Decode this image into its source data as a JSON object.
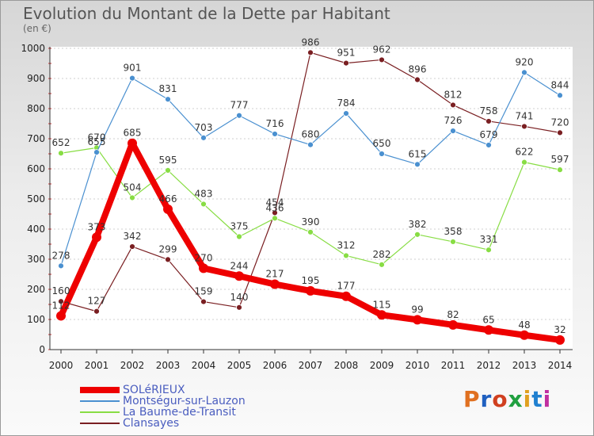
{
  "title": "Evolution du Montant de la Dette par Habitant",
  "unit_label": "(en €)",
  "logo_text": "Proxiti",
  "colors": {
    "solerieux": "#ee0000",
    "montsegur": "#4a90d0",
    "baume": "#88dd44",
    "clansayes": "#7a1f22",
    "logo": [
      "#e07020",
      "#2060c0",
      "#d04020",
      "#20a040",
      "#e0a020",
      "#2080d0",
      "#c030a0"
    ]
  },
  "chart_data": {
    "type": "line",
    "title": "Evolution du Montant de la Dette par Habitant",
    "ylabel": "(en €)",
    "xlabel": "",
    "x": [
      "2000",
      "2001",
      "2002",
      "2003",
      "2004",
      "2005",
      "2006",
      "2007",
      "2008",
      "2009",
      "2010",
      "2011",
      "2012",
      "2013",
      "2014"
    ],
    "ylim": [
      0,
      1000
    ],
    "yticks": [
      0,
      100,
      200,
      300,
      400,
      500,
      600,
      700,
      800,
      900,
      1000
    ],
    "legend_position": "bottom-left",
    "series": [
      {
        "name": "SOLéRIEUX",
        "key": "solerieux",
        "values": [
          112,
          373,
          685,
          466,
          270,
          244,
          217,
          195,
          177,
          115,
          99,
          82,
          65,
          48,
          32
        ],
        "labels": [
          "112",
          "373",
          "685",
          "466",
          "270",
          "244",
          "217",
          "195",
          "177",
          "115",
          "99",
          "82",
          "65",
          "48",
          "32"
        ]
      },
      {
        "name": "Montségur-sur-Lauzon",
        "key": "montsegur",
        "values": [
          278,
          655,
          901,
          831,
          703,
          777,
          716,
          680,
          784,
          650,
          615,
          726,
          679,
          920,
          844
        ],
        "labels": [
          "278",
          "655",
          "901",
          "831",
          "703",
          "777",
          "716",
          "680",
          "784",
          "650",
          "615",
          "726",
          "679",
          "920",
          "844"
        ]
      },
      {
        "name": "La Baume-de-Transit",
        "key": "baume",
        "values": [
          652,
          670,
          504,
          595,
          483,
          375,
          436,
          390,
          312,
          282,
          382,
          358,
          331,
          622,
          597
        ],
        "labels": [
          "652",
          "670",
          "504",
          "595",
          "483",
          "375",
          "436",
          "390",
          "312",
          "282",
          "382",
          "358",
          "331",
          "622",
          "597"
        ]
      },
      {
        "name": "Clansayes",
        "key": "clansayes",
        "values": [
          160,
          127,
          342,
          299,
          159,
          140,
          454,
          986,
          951,
          962,
          896,
          812,
          758,
          741,
          720
        ],
        "labels": [
          "160",
          "127",
          "342",
          "299",
          "159",
          "140",
          "454",
          "986",
          "951",
          "962",
          "896",
          "812",
          "758",
          "741",
          "720"
        ]
      }
    ]
  }
}
